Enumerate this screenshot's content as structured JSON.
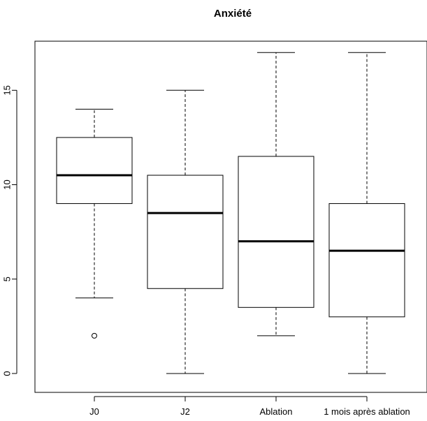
{
  "chart_data": {
    "type": "boxplot",
    "title": "Anxiété",
    "xlabel": "",
    "ylabel": "",
    "ylim": [
      -1.0,
      17.6
    ],
    "yticks": [
      0,
      5,
      10,
      15
    ],
    "ytick_labels": [
      "0",
      "5",
      "10",
      "15"
    ],
    "categories": [
      "J0",
      "J2",
      "Ablation",
      "1 mois après ablation"
    ],
    "boxes": [
      {
        "label": "J0",
        "whisker_low": 4,
        "q1": 9,
        "median": 10.5,
        "q3": 12.5,
        "whisker_high": 14,
        "outliers": [
          2
        ]
      },
      {
        "label": "J2",
        "whisker_low": 0,
        "q1": 4.5,
        "median": 8.5,
        "q3": 10.5,
        "whisker_high": 15,
        "outliers": []
      },
      {
        "label": "Ablation",
        "whisker_low": 2,
        "q1": 3.5,
        "median": 7,
        "q3": 11.5,
        "whisker_high": 17,
        "outliers": []
      },
      {
        "label": "1 mois après ablation",
        "whisker_low": 0,
        "q1": 3,
        "median": 6.5,
        "q3": 9,
        "whisker_high": 17,
        "outliers": []
      }
    ],
    "grid": false,
    "legend": "none"
  }
}
